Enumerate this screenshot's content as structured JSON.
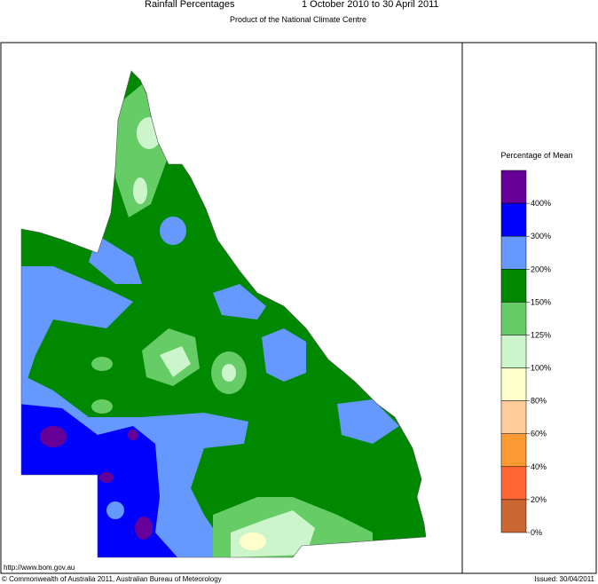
{
  "header": {
    "title": "Rainfall Percentages",
    "period": "1 October 2010 to 30 April 2011",
    "subtitle": "Product of the National Climate Centre"
  },
  "legend": {
    "title": "Percentage of Mean",
    "items": [
      {
        "color": "#660099",
        "label": "400%"
      },
      {
        "color": "#0000ff",
        "label": "300%"
      },
      {
        "color": "#6699ff",
        "label": "200%"
      },
      {
        "color": "#008800",
        "label": "150%"
      },
      {
        "color": "#66cc66",
        "label": "125%"
      },
      {
        "color": "#ccf5cc",
        "label": "100%"
      },
      {
        "color": "#ffffcc",
        "label": "80%"
      },
      {
        "color": "#ffcc99",
        "label": "60%"
      },
      {
        "color": "#ff9933",
        "label": "40%"
      },
      {
        "color": "#ff6633",
        "label": "20%"
      },
      {
        "color": "#cc6633",
        "label": "0%"
      }
    ]
  },
  "footer": {
    "url": "http://www.bom.gov.au",
    "copyright": "© Commonwealth of Australia 2011, Australian Bureau of Meteorology",
    "issued": "Issued: 30/04/2011"
  }
}
